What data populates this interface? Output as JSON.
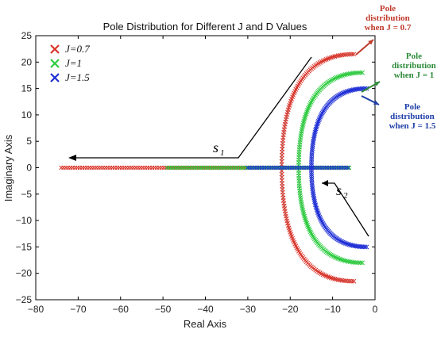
{
  "chart_data": {
    "type": "scatter",
    "title": "Pole Distribution for Different J and D Values",
    "xlabel": "Real Axis",
    "ylabel": "Imaginary Axis",
    "xlim": [
      -80,
      0
    ],
    "ylim": [
      -25,
      25
    ],
    "xticks": [
      "−80",
      "−70",
      "−60",
      "−50",
      "−40",
      "−30",
      "−20",
      "−10",
      "0"
    ],
    "yticks": [
      "25",
      "20",
      "15",
      "10",
      "5",
      "0",
      "−5",
      "−10",
      "−15",
      "−20",
      "−25"
    ],
    "legend_position": "top-left",
    "series": [
      {
        "name": "J=0.7",
        "color": "#d9342b",
        "real_axis_range": [
          -74,
          -6
        ],
        "arc": {
          "real_start": -22,
          "imag_start": 0,
          "real_end": -5,
          "imag_end": 21.5
        }
      },
      {
        "name": "J=1",
        "color": "#2ecc40",
        "real_axis_range": [
          -49,
          -6
        ],
        "arc": {
          "real_start": -18,
          "imag_start": 0,
          "real_end": -3,
          "imag_end": 18
        }
      },
      {
        "name": "J=1.5",
        "color": "#1f2fd6",
        "real_axis_range": [
          -30,
          -6
        ],
        "arc": {
          "real_start": -15,
          "imag_start": 0,
          "real_end": -2,
          "imag_end": 15
        }
      }
    ],
    "annotations": [
      {
        "id": "red",
        "lines": [
          "Pole",
          "distribution",
          "when J = 0.7"
        ],
        "color": "#c0392b"
      },
      {
        "id": "green",
        "lines": [
          "Pole",
          "distribution",
          "when J = 1"
        ],
        "color": "#2e8b3a"
      },
      {
        "id": "blue",
        "lines": [
          "Pole",
          "distribution",
          "when J = 1.5"
        ],
        "color": "#1f3fa8"
      }
    ],
    "s1_label": "s",
    "s1_sub": "1",
    "s2_label": "s",
    "s2_sub": "2"
  }
}
